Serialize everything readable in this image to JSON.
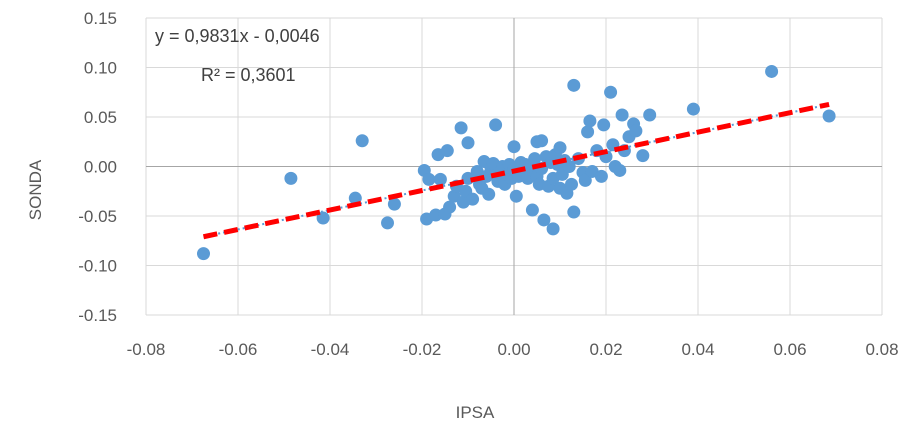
{
  "chart_data": {
    "type": "scatter",
    "xlabel": "IPSA",
    "ylabel": "SONDA",
    "xlim": [
      -0.08,
      0.08
    ],
    "ylim": [
      -0.15,
      0.15
    ],
    "x_ticks": [
      -0.08,
      -0.06,
      -0.04,
      -0.02,
      0.0,
      0.02,
      0.04,
      0.06,
      0.08
    ],
    "y_ticks": [
      -0.15,
      -0.1,
      -0.05,
      0.0,
      0.05,
      0.1,
      0.15
    ],
    "x_tick_labels": [
      "-0.08",
      "-0.06",
      "-0.04",
      "-0.02",
      "0.00",
      "0.02",
      "0.04",
      "0.06",
      "0.08"
    ],
    "y_tick_labels": [
      "-0.15",
      "-0.10",
      "-0.05",
      "0.00",
      "0.05",
      "0.10",
      "0.15"
    ],
    "grid": true,
    "equation": "y = 0,9831x - 0,0046",
    "r_squared": "R² = 0,3601",
    "trendline": {
      "slope": 0.9831,
      "intercept": -0.0046,
      "x_range": [
        -0.0675,
        0.0685
      ],
      "color": "#ff0000",
      "style": "dashed"
    },
    "marker_color": "#5b9bd5",
    "points": [
      [
        -0.0675,
        -0.088
      ],
      [
        -0.0485,
        -0.012
      ],
      [
        -0.0415,
        -0.052
      ],
      [
        -0.0345,
        -0.032
      ],
      [
        -0.033,
        0.026
      ],
      [
        -0.0275,
        -0.057
      ],
      [
        -0.026,
        -0.038
      ],
      [
        -0.0195,
        -0.004
      ],
      [
        -0.019,
        -0.053
      ],
      [
        -0.0185,
        -0.013
      ],
      [
        -0.017,
        -0.049
      ],
      [
        -0.0165,
        0.012
      ],
      [
        -0.016,
        -0.013
      ],
      [
        -0.015,
        -0.048
      ],
      [
        -0.0145,
        0.016
      ],
      [
        -0.014,
        -0.041
      ],
      [
        -0.013,
        -0.03
      ],
      [
        -0.0125,
        -0.02
      ],
      [
        -0.0115,
        0.039
      ],
      [
        -0.011,
        -0.036
      ],
      [
        -0.0105,
        -0.025
      ],
      [
        -0.01,
        -0.012
      ],
      [
        -0.01,
        0.024
      ],
      [
        -0.009,
        -0.033
      ],
      [
        -0.008,
        -0.005
      ],
      [
        -0.0075,
        -0.018
      ],
      [
        -0.007,
        -0.022
      ],
      [
        -0.0065,
        0.005
      ],
      [
        -0.006,
        -0.01
      ],
      [
        -0.0055,
        -0.028
      ],
      [
        -0.005,
        -0.002
      ],
      [
        -0.0045,
        0.003
      ],
      [
        -0.004,
        0.042
      ],
      [
        -0.0035,
        -0.015
      ],
      [
        -0.003,
        -0.006
      ],
      [
        -0.0025,
        0.0
      ],
      [
        -0.002,
        -0.018
      ],
      [
        -0.0015,
        -0.008
      ],
      [
        -0.001,
        0.002
      ],
      [
        -0.0005,
        -0.012
      ],
      [
        0.0,
        -0.003
      ],
      [
        0.0,
        0.02
      ],
      [
        0.0005,
        -0.03
      ],
      [
        0.001,
        -0.01
      ],
      [
        0.0015,
        0.004
      ],
      [
        0.002,
        -0.005
      ],
      [
        0.0025,
        0.002
      ],
      [
        0.003,
        -0.012
      ],
      [
        0.0035,
        -0.003
      ],
      [
        0.004,
        -0.044
      ],
      [
        0.0045,
        0.008
      ],
      [
        0.005,
        -0.01
      ],
      [
        0.005,
        0.025
      ],
      [
        0.0055,
        -0.018
      ],
      [
        0.006,
        0.026
      ],
      [
        0.006,
        -0.002
      ],
      [
        0.0065,
        -0.054
      ],
      [
        0.007,
        0.01
      ],
      [
        0.0075,
        -0.02
      ],
      [
        0.008,
        0.004
      ],
      [
        0.0085,
        -0.063
      ],
      [
        0.0085,
        -0.012
      ],
      [
        0.009,
        0.012
      ],
      [
        0.0095,
        0.002
      ],
      [
        0.01,
        -0.022
      ],
      [
        0.01,
        0.019
      ],
      [
        0.0105,
        -0.008
      ],
      [
        0.011,
        0.006
      ],
      [
        0.0115,
        -0.027
      ],
      [
        0.012,
        0.0
      ],
      [
        0.0125,
        -0.018
      ],
      [
        0.013,
        -0.046
      ],
      [
        0.013,
        0.082
      ],
      [
        0.014,
        0.008
      ],
      [
        0.015,
        -0.006
      ],
      [
        0.0155,
        -0.014
      ],
      [
        0.016,
        0.035
      ],
      [
        0.0165,
        0.046
      ],
      [
        0.017,
        -0.005
      ],
      [
        0.018,
        0.016
      ],
      [
        0.019,
        -0.01
      ],
      [
        0.0195,
        0.042
      ],
      [
        0.02,
        0.01
      ],
      [
        0.021,
        0.075
      ],
      [
        0.0215,
        0.022
      ],
      [
        0.022,
        0.0
      ],
      [
        0.023,
        -0.004
      ],
      [
        0.0235,
        0.052
      ],
      [
        0.024,
        0.016
      ],
      [
        0.025,
        0.03
      ],
      [
        0.026,
        0.043
      ],
      [
        0.0265,
        0.036
      ],
      [
        0.028,
        0.011
      ],
      [
        0.0295,
        0.052
      ],
      [
        0.039,
        0.058
      ],
      [
        0.056,
        0.096
      ],
      [
        0.0685,
        0.051
      ]
    ]
  }
}
